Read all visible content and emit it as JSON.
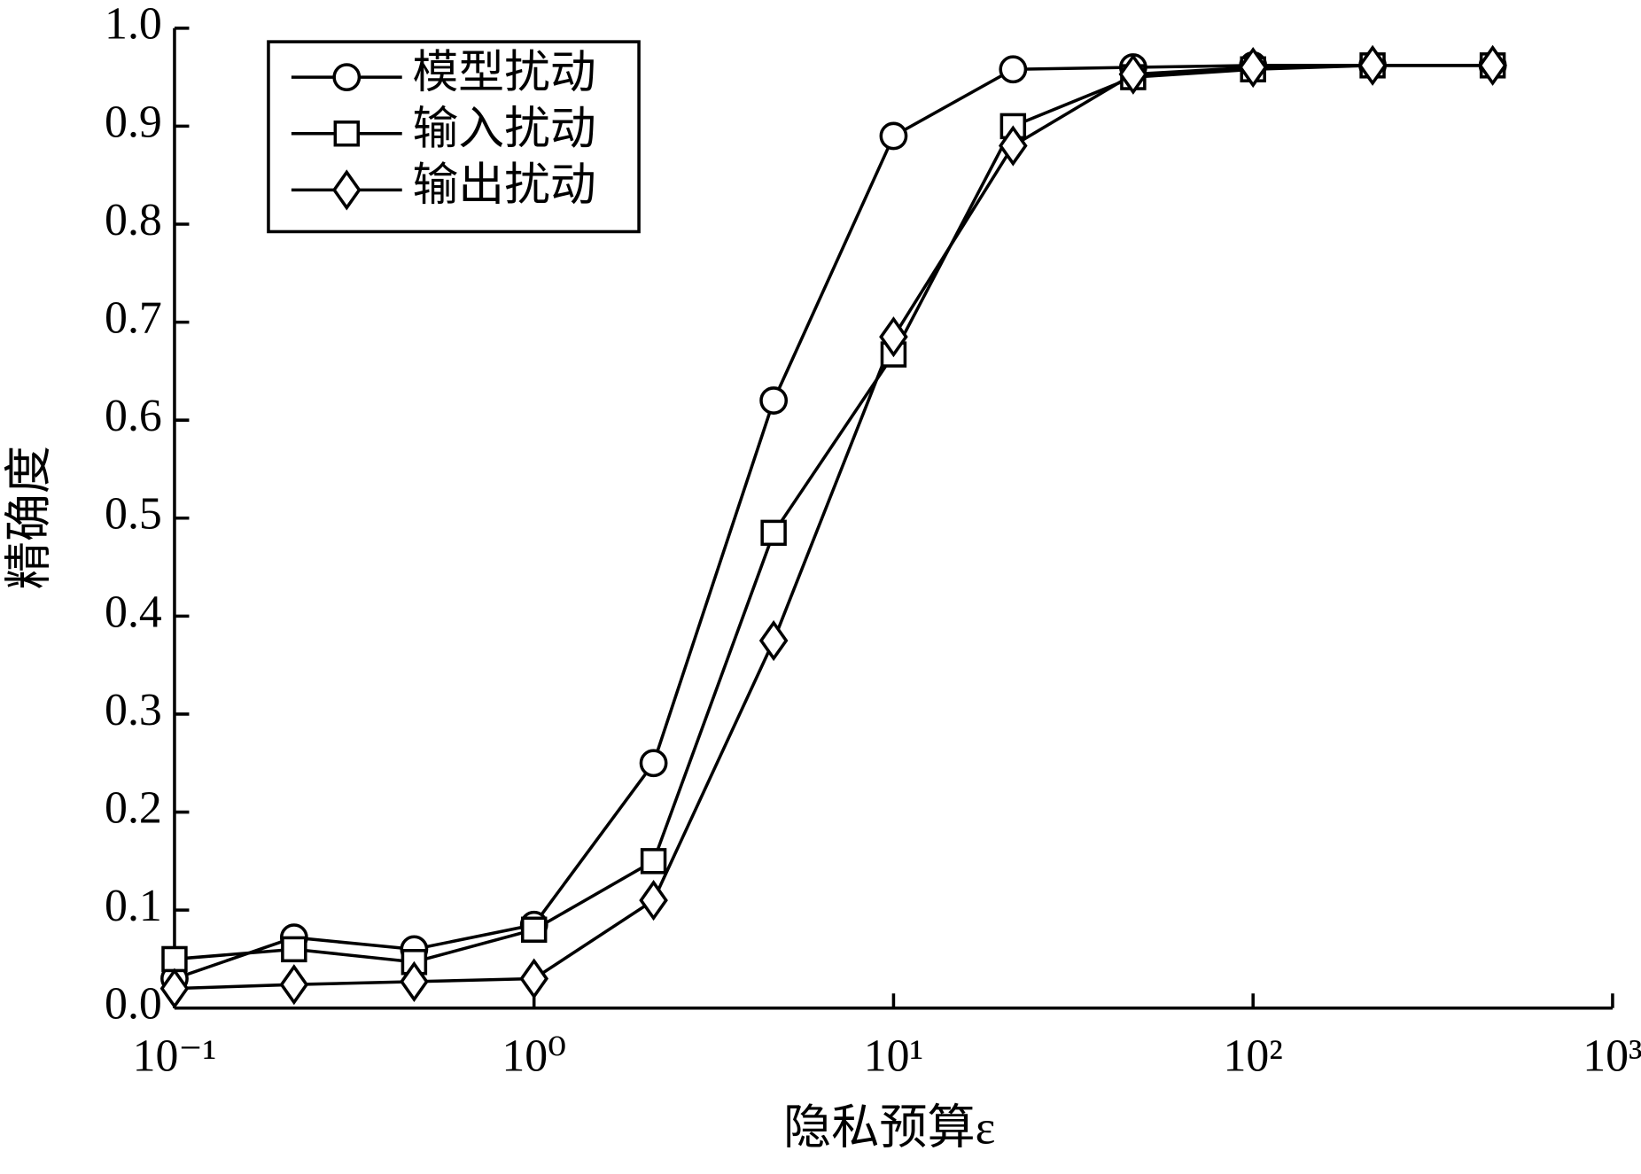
{
  "chart_data": {
    "type": "line",
    "x_label": "隐私预算ε",
    "y_label": "精确度",
    "x": [
      0.1,
      0.215,
      0.464,
      1,
      2.15,
      4.64,
      10,
      21.5,
      46.4,
      100,
      215,
      464
    ],
    "series": [
      {
        "name": "模型扰动",
        "color": "#000000",
        "marker": "circle",
        "values": [
          0.03,
          0.072,
          0.06,
          0.085,
          0.25,
          0.62,
          0.89,
          0.958,
          0.96,
          0.962,
          0.962,
          0.962
        ]
      },
      {
        "name": "输入扰动",
        "color": "#000000",
        "marker": "square",
        "values": [
          0.05,
          0.06,
          0.047,
          0.08,
          0.15,
          0.485,
          0.667,
          0.9,
          0.95,
          0.958,
          0.962,
          0.962
        ]
      },
      {
        "name": "输出扰动",
        "color": "#000000",
        "marker": "diamond",
        "values": [
          0.02,
          0.024,
          0.027,
          0.03,
          0.11,
          0.375,
          0.685,
          0.88,
          0.953,
          0.96,
          0.962,
          0.962
        ]
      }
    ],
    "xscale": "log",
    "xlim": [
      0.1,
      1000
    ],
    "xticks": [
      {
        "value": 0.1,
        "label": "10⁻¹"
      },
      {
        "value": 1,
        "label": "10⁰"
      },
      {
        "value": 10,
        "label": "10¹"
      },
      {
        "value": 100,
        "label": "10²"
      },
      {
        "value": 1000,
        "label": "10³"
      }
    ],
    "ylim": [
      0,
      1
    ],
    "yticks": [
      {
        "value": 0,
        "label": "0.0"
      },
      0.1,
      0.2,
      0.3,
      0.4,
      0.5,
      0.6,
      0.7,
      0.8,
      0.9,
      {
        "value": 1,
        "label": "1.0"
      }
    ],
    "legend": "upper left",
    "grid": false
  }
}
